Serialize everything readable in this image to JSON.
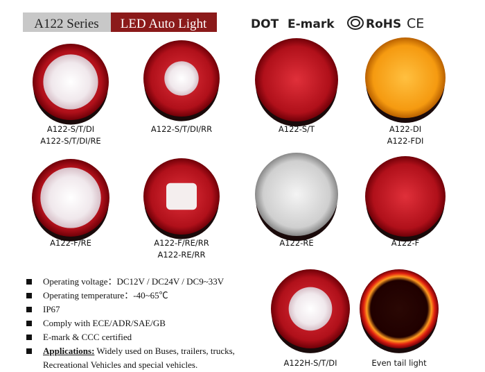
{
  "header": {
    "series": "A122 Series",
    "product": "LED Auto Light",
    "certifications": [
      "DOT",
      "E-mark",
      "RoHS",
      "CE"
    ]
  },
  "products": [
    {
      "labels": [
        "A122-S/T/DI",
        "A122-S/T/DI/RE"
      ]
    },
    {
      "labels": [
        "A122-S/T/DI/RR"
      ]
    },
    {
      "labels": [
        "A122-S/T"
      ]
    },
    {
      "labels": [
        "A122-DI",
        "A122-FDI"
      ]
    },
    {
      "labels": [
        "A122-F/RE"
      ]
    },
    {
      "labels": [
        "A122-F/RE/RR",
        "A122-RE/RR"
      ]
    },
    {
      "labels": [
        "A122-RE"
      ]
    },
    {
      "labels": [
        "A122-F"
      ]
    },
    {
      "labels": [
        "A122H-S/T/DI"
      ]
    },
    {
      "labels": [
        "Even tail light"
      ]
    }
  ],
  "features": [
    "Operating voltage：DC12V / DC24V / DC9~33V",
    "Operating temperature：-40~65℃",
    "IP67",
    "Comply with ECE/ADR/SAE/GB",
    "E-mark & CCC certified",
    {
      "label": "Applications:",
      "text": "Widely used on Buses, trailers, trucks, Recreational Vehicles and special vehicles."
    }
  ]
}
